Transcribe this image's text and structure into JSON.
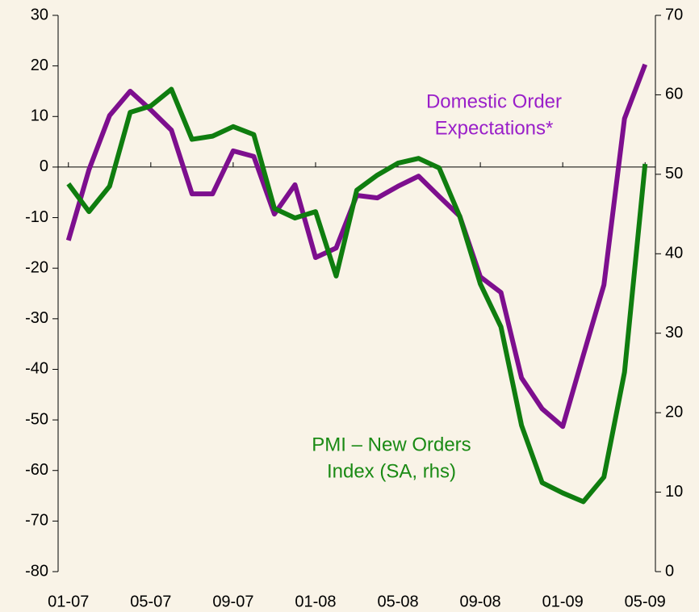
{
  "chart_data": {
    "type": "line",
    "categories": [
      "01-07",
      null,
      null,
      null,
      "05-07",
      null,
      null,
      null,
      "09-07",
      null,
      null,
      null,
      "01-08",
      null,
      null,
      null,
      "05-08",
      null,
      null,
      null,
      "09-08",
      null,
      null,
      null,
      "01-09",
      null,
      null,
      null,
      "05-09"
    ],
    "series": [
      {
        "color": "#7d0f8e",
        "values": [
          -14.5,
          -0.5,
          10.2,
          15,
          11.3,
          7.3,
          -5.3,
          -5.3,
          3.2,
          2.1,
          -9.3,
          -3.5,
          -17.9,
          -16,
          -5.6,
          -6.1,
          -3.8,
          -1.8,
          -5.8,
          -9.7,
          -21.7,
          -24.8,
          -41.7,
          -47.8,
          -51.3,
          -37.2,
          -23.3,
          9.6,
          20.3
        ]
      },
      {
        "color": "#0f7d0f",
        "axis": "y2",
        "values": [
          48.8,
          45.3,
          48.5,
          57.8,
          58.6,
          60.7,
          54.4,
          54.8,
          56,
          55,
          45.7,
          44.5,
          45.3,
          37.2,
          48,
          49.9,
          51.4,
          52,
          50.8,
          44.7,
          36.2,
          30.8,
          18.4,
          11.2,
          9.9,
          8.8,
          11.9,
          25.1,
          51.3
        ]
      }
    ],
    "ylim": [
      -80,
      30
    ],
    "yticks": [
      -80,
      -70,
      -60,
      -50,
      -40,
      -30,
      -20,
      -10,
      0,
      10,
      20,
      30
    ],
    "y2lim": [
      0,
      70
    ],
    "y2ticks": [
      0,
      10,
      20,
      30,
      40,
      50,
      60,
      70
    ],
    "annotations": [
      {
        "lines": [
          "Domestic Order",
          "Expectations*"
        ],
        "series": 0
      },
      {
        "lines": [
          "PMI – New Orders",
          "Index (SA, rhs)"
        ],
        "series": 1
      }
    ]
  }
}
